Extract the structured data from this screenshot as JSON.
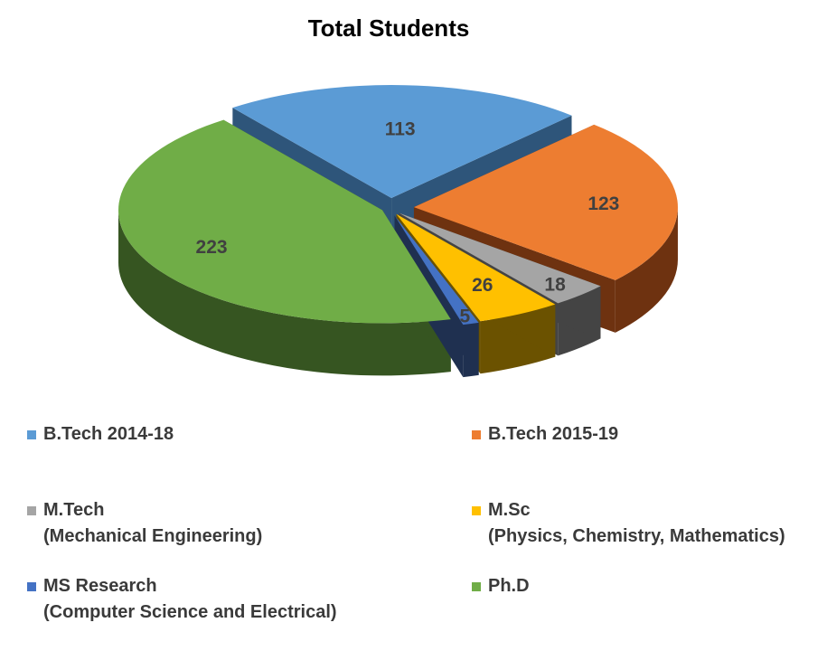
{
  "chart_data": {
    "type": "pie",
    "title": "Total Students",
    "slices": [
      {
        "label": "B.Tech 2014-18",
        "value": 113,
        "color": "#5B9BD5",
        "dark": "#2E557A"
      },
      {
        "label": "B.Tech 2015-19",
        "value": 123,
        "color": "#ED7D31",
        "dark": "#6E3210"
      },
      {
        "label": "M.Tech",
        "sublabel": "(Mechanical Engineering)",
        "value": 18,
        "color": "#A5A5A5",
        "dark": "#444444"
      },
      {
        "label": "M.Sc",
        "sublabel": "(Physics, Chemistry, Mathematics)",
        "value": 26,
        "color": "#FFC000",
        "dark": "#6B5200"
      },
      {
        "label": "MS Research",
        "sublabel": "(Computer Science and Electrical)",
        "value": 5,
        "color": "#4472C4",
        "dark": "#1F3050"
      },
      {
        "label": "Ph.D",
        "value": 223,
        "color": "#70AD47",
        "dark": "#365521"
      }
    ],
    "legend_position": "bottom",
    "data_labels": true,
    "style": "3d-exploded"
  }
}
